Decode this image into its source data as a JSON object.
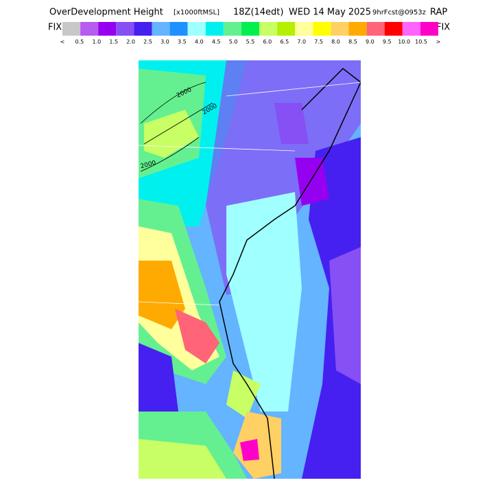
{
  "header": {
    "title": "OverDevelopment Height",
    "units": "[x1000ftMSL]",
    "time": "18Z(14edt)",
    "date": "WED 14 May 2025",
    "forecast": "9hrFcst@0953z",
    "model": "RAP"
  },
  "legend": {
    "left_label": "FIX",
    "right_label": "FIX",
    "colors": [
      "#c8c8c8",
      "#b65cf0",
      "#9600f0",
      "#8650f4",
      "#4620f0",
      "#64b4ff",
      "#1e90ff",
      "#a0ffff",
      "#00f0f0",
      "#64f090",
      "#00f050",
      "#c8ff64",
      "#b4f000",
      "#ffff9c",
      "#ffff00",
      "#ffd064",
      "#ffaa00",
      "#ff6478",
      "#ff0000",
      "#ff64ff",
      "#ff00c8"
    ],
    "labels": [
      "<",
      "0.5",
      "1.0",
      "1.5",
      "2.0",
      "2.5",
      "3.0",
      "3.5",
      "4.0",
      "4.5",
      "5.0",
      "5.5",
      "6.0",
      "6.5",
      "7.0",
      "7.5",
      "8.0",
      "8.5",
      "9.0",
      "9.5",
      "10.0",
      "10.5",
      ">"
    ]
  },
  "map": {
    "contour_labels": [
      "2000",
      "2000",
      "2000"
    ]
  }
}
